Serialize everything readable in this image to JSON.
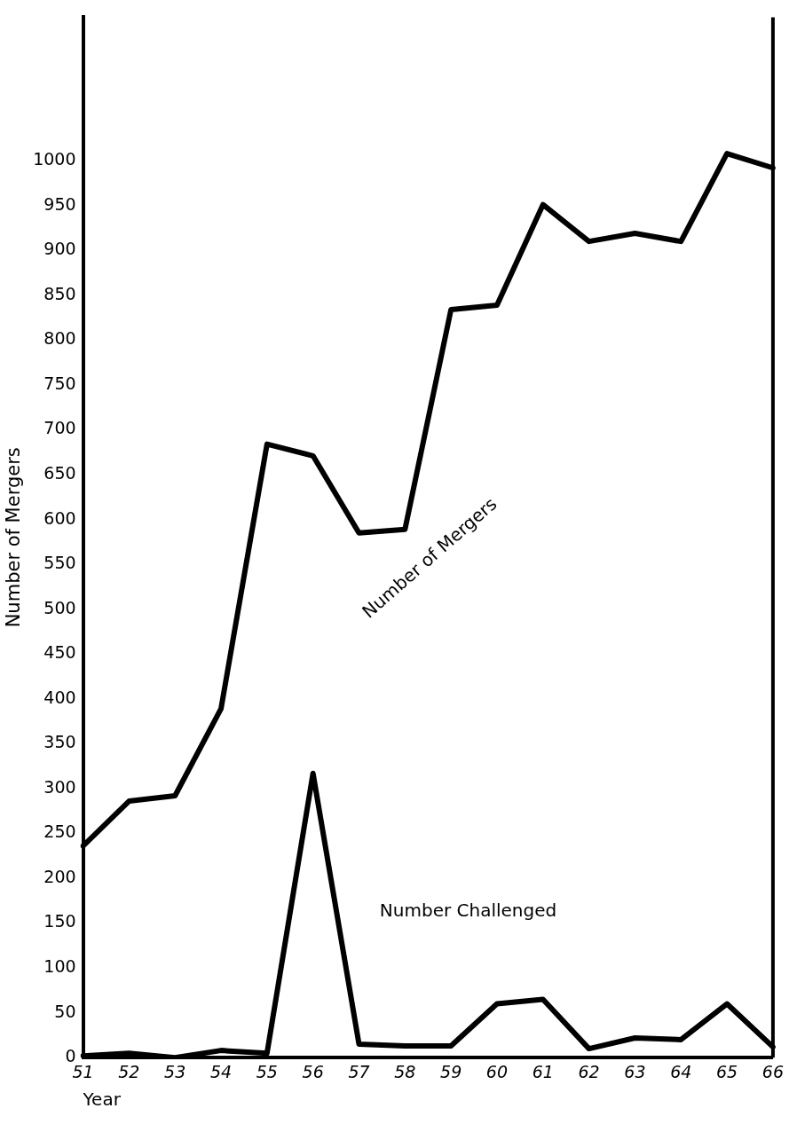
{
  "chart_data": {
    "type": "line",
    "xlabel": "Year",
    "ylabel": "Number of Mergers",
    "categories": [
      "51",
      "52",
      "53",
      "54",
      "55",
      "56",
      "57",
      "58",
      "59",
      "60",
      "61",
      "62",
      "63",
      "64",
      "65",
      "66"
    ],
    "series": [
      {
        "name": "Number of Mergers",
        "color": "#000000",
        "values": [
          236,
          286,
          292,
          389,
          684,
          671,
          585,
          589,
          834,
          839,
          951,
          910,
          919,
          910,
          1008,
          992
        ]
      },
      {
        "name": "Number Challenged",
        "color": "#000000",
        "values": [
          2,
          5,
          0,
          8,
          5,
          317,
          15,
          13,
          13,
          60,
          65,
          10,
          22,
          20,
          60,
          12
        ]
      }
    ],
    "ylim": [
      0,
      1160
    ],
    "yticks": [
      0,
      50,
      100,
      150,
      200,
      250,
      300,
      350,
      400,
      450,
      500,
      550,
      600,
      650,
      700,
      750,
      800,
      850,
      900,
      950,
      1000
    ],
    "grid": false,
    "legend": false,
    "marker": "none",
    "line_style": "solid"
  }
}
